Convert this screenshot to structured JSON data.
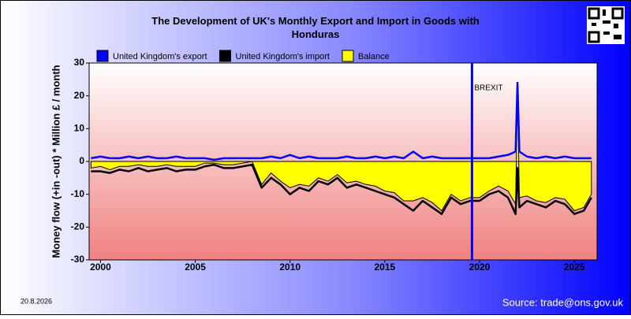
{
  "chart_data": {
    "type": "line",
    "title": "The Development of UK's Monthly Export and Import in Goods with Honduras",
    "y_label": "Money flow (+in -out) * Million £ / month",
    "x": [
      1999.5,
      2000,
      2000.5,
      2001,
      2001.5,
      2002,
      2002.5,
      2003,
      2003.5,
      2004,
      2004.5,
      2005,
      2005.5,
      2006,
      2006.5,
      2007,
      2007.5,
      2008,
      2008.5,
      2009,
      2009.5,
      2010,
      2010.5,
      2011,
      2011.5,
      2012,
      2012.5,
      2013,
      2013.5,
      2014,
      2014.5,
      2015,
      2015.5,
      2016,
      2016.5,
      2017,
      2017.5,
      2018,
      2018.5,
      2019,
      2019.5,
      2020,
      2020.5,
      2021,
      2021.5,
      2021.9,
      2022.0,
      2022.1,
      2022.5,
      2023,
      2023.5,
      2024,
      2024.5,
      2025,
      2025.5,
      2025.9
    ],
    "series": [
      {
        "name": "Balance",
        "color": "#ffff00",
        "fill": true,
        "values": [
          -2,
          -1.5,
          -2.5,
          -1.5,
          -1.5,
          -1,
          -1.5,
          -1.5,
          -1,
          -1.5,
          -1.5,
          -1.5,
          -0.5,
          -0.5,
          -1,
          -1,
          -0.5,
          0,
          -7,
          -3.5,
          -6,
          -8,
          -7,
          -7.5,
          -5,
          -6,
          -4,
          -6.5,
          -6,
          -7,
          -7.5,
          -9,
          -9.5,
          -12,
          -12,
          -11,
          -12.5,
          -15,
          -10,
          -12,
          -11,
          -11,
          -9,
          -7.5,
          -9,
          -13,
          22,
          -11,
          -10.5,
          -12,
          -12.5,
          -11,
          -11.5,
          -15,
          -14,
          -10
        ]
      },
      {
        "name": "United Kingdom's import",
        "color": "#000000",
        "values": [
          -3,
          -3,
          -3.5,
          -2.5,
          -3,
          -2,
          -3,
          -2.5,
          -2,
          -3,
          -2.5,
          -2.5,
          -1.5,
          -1,
          -2,
          -2,
          -1.5,
          -1,
          -8,
          -5,
          -7,
          -10,
          -8,
          -9,
          -6,
          -7,
          -5,
          -8,
          -7,
          -8,
          -9,
          -10,
          -11,
          -13,
          -15,
          -12,
          -14,
          -16,
          -11,
          -13,
          -12,
          -12,
          -10,
          -9,
          -11,
          -16,
          -2,
          -14,
          -12,
          -13,
          -14,
          -12,
          -13,
          -16,
          -15,
          -11
        ]
      },
      {
        "name": "United Kingdom's export",
        "color": "#0000ff",
        "values": [
          1,
          1.5,
          1,
          1,
          1.5,
          1,
          1.5,
          1,
          1,
          1.5,
          1,
          1,
          1,
          0.5,
          1,
          1,
          1,
          1,
          1,
          1.5,
          1,
          2,
          1,
          1.5,
          1,
          1,
          1,
          1.5,
          1,
          1,
          1.5,
          1,
          1.5,
          1,
          3,
          1,
          1.5,
          1,
          1,
          1,
          1,
          1,
          1,
          1.5,
          2,
          3,
          24,
          3,
          1.5,
          1,
          1.5,
          1,
          1.5,
          1,
          1,
          1
        ]
      }
    ],
    "legend_order": [
      2,
      1,
      0
    ],
    "xlim": [
      1999.4,
      2026.2
    ],
    "xticks": [
      2000,
      2005,
      2010,
      2015,
      2020,
      2025
    ],
    "ylim": [
      -30,
      30
    ],
    "yticks": [
      -30,
      -20,
      -10,
      0,
      10,
      20,
      30
    ],
    "annotations": [
      {
        "text": "BREXIT",
        "x": 2019.6,
        "color": "#0000ff"
      }
    ],
    "date": "20.8.2026",
    "source": "Source: trade@ons.gov.uk"
  }
}
